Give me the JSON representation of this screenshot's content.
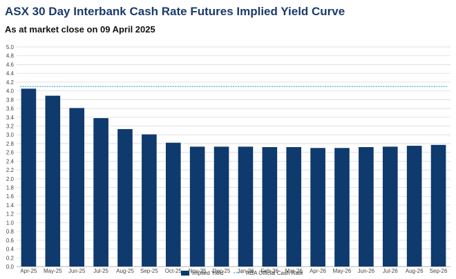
{
  "header": {
    "title": "ASX 30 Day Interbank Cash Rate Futures Implied Yield Curve",
    "subtitle": "As at market close on 09 April 2025"
  },
  "colors": {
    "bar": "#0e3a6e",
    "reference_line": "#3fa9d6",
    "grid": "#d9d9d9"
  },
  "chart_data": {
    "type": "bar",
    "title": "ASX 30 Day Interbank Cash Rate Futures Implied Yield Curve",
    "subtitle": "As at market close on 09 April 2025",
    "xlabel": "",
    "ylabel": "",
    "ylim": [
      0,
      5.0
    ],
    "ytick_step": 0.2,
    "ytick_labels": [
      "0.0",
      "0.2",
      "0.4",
      "0.6",
      "0.8",
      "1.0",
      "1.2",
      "1.4",
      "1.6",
      "1.8",
      "2.0",
      "2.2",
      "2.4",
      "2.6",
      "2.8",
      "3.0",
      "3.2",
      "3.4",
      "3.6",
      "3.8",
      "4.0",
      "4.2",
      "4.4",
      "4.6",
      "4.8",
      "5.0"
    ],
    "grid": true,
    "legend_position": "bottom",
    "categories": [
      "Apr-25",
      "May-25",
      "Jun-25",
      "Jul-25",
      "Aug-25",
      "Sep-25",
      "Oct-25",
      "Nov-25",
      "Dec-25",
      "Jan-26",
      "Feb-26",
      "Mar-26",
      "Apr-26",
      "May-26",
      "Jun-26",
      "Jul-26",
      "Aug-26",
      "Sep-26"
    ],
    "series": [
      {
        "name": "Implied Yield",
        "type": "bar",
        "values": [
          4.05,
          3.89,
          3.61,
          3.38,
          3.13,
          3.01,
          2.82,
          2.73,
          2.73,
          2.73,
          2.72,
          2.72,
          2.7,
          2.7,
          2.72,
          2.73,
          2.75,
          2.77
        ]
      },
      {
        "name": "RBA Official Cash Rate",
        "type": "line",
        "style": "dashed",
        "value": 4.1
      }
    ]
  }
}
